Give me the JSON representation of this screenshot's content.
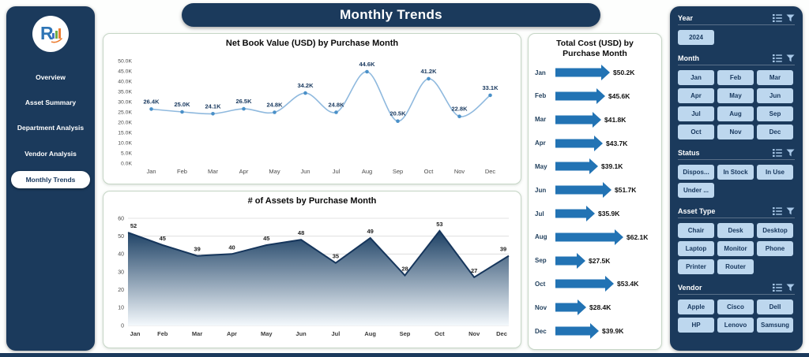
{
  "header": {
    "title": "Monthly Trends"
  },
  "sidebar": {
    "items": [
      {
        "label": "Overview",
        "active": false
      },
      {
        "label": "Asset Summary",
        "active": false
      },
      {
        "label": "Department Analysis",
        "active": false
      },
      {
        "label": "Vendor Analysis",
        "active": false
      },
      {
        "label": "Monthly Trends",
        "active": true
      }
    ]
  },
  "filters": {
    "year": {
      "title": "Year",
      "options": [
        "2024"
      ]
    },
    "month": {
      "title": "Month",
      "options": [
        "Jan",
        "Feb",
        "Mar",
        "Apr",
        "May",
        "Jun",
        "Jul",
        "Aug",
        "Sep",
        "Oct",
        "Nov",
        "Dec"
      ]
    },
    "status": {
      "title": "Status",
      "options": [
        "Dispos...",
        "In Stock",
        "In Use",
        "Under ..."
      ]
    },
    "asset_type": {
      "title": "Asset Type",
      "options": [
        "Chair",
        "Desk",
        "Desktop",
        "Laptop",
        "Monitor",
        "Phone",
        "Printer",
        "Router"
      ]
    },
    "vendor": {
      "title": "Vendor",
      "options": [
        "Apple",
        "Cisco",
        "Dell",
        "HP",
        "Lenovo",
        "Samsung"
      ]
    }
  },
  "icons": {
    "section_header": [
      "select-all-icon",
      "clear-filter-icon"
    ],
    "logo": "company-logo-icon"
  },
  "chart_data": [
    {
      "type": "line",
      "title": "Net Book Value (USD) by Purchase Month",
      "categories": [
        "Jan",
        "Feb",
        "Mar",
        "Apr",
        "May",
        "Jun",
        "Jul",
        "Aug",
        "Sep",
        "Oct",
        "Nov",
        "Dec"
      ],
      "values": [
        26.4,
        25.0,
        24.1,
        26.5,
        24.8,
        34.2,
        24.8,
        44.6,
        20.5,
        41.2,
        22.8,
        33.1
      ],
      "labels": [
        "26.4K",
        "25.0K",
        "24.1K",
        "26.5K",
        "24.8K",
        "34.2K",
        "24.8K",
        "44.6K",
        "20.5K",
        "41.2K",
        "22.8K",
        "33.1K"
      ],
      "ylim": [
        0,
        50
      ],
      "ytick_step": 5,
      "ytick_labels": [
        "0.0K",
        "5.0K",
        "10.0K",
        "15.0K",
        "20.0K",
        "25.0K",
        "30.0K",
        "35.0K",
        "40.0K",
        "45.0K",
        "50.0K"
      ],
      "grid": false,
      "legend": false
    },
    {
      "type": "area",
      "title": "# of Assets by Purchase Month",
      "categories": [
        "Jan",
        "Feb",
        "Mar",
        "Apr",
        "May",
        "Jun",
        "Jul",
        "Aug",
        "Sep",
        "Oct",
        "Nov",
        "Dec"
      ],
      "values": [
        52,
        45,
        39,
        40,
        45,
        48,
        35,
        49,
        28,
        53,
        27,
        39
      ],
      "ylim": [
        0,
        60
      ],
      "ytick_step": 10,
      "ytick_labels": [
        "0",
        "10",
        "20",
        "30",
        "40",
        "50",
        "60"
      ],
      "grid": true,
      "legend": false
    },
    {
      "type": "bar",
      "orientation": "horizontal",
      "title": "Total Cost (USD) by Purchase Month",
      "categories": [
        "Jan",
        "Feb",
        "Mar",
        "Apr",
        "May",
        "Jun",
        "Jul",
        "Aug",
        "Sep",
        "Oct",
        "Nov",
        "Dec"
      ],
      "values": [
        50.2,
        45.6,
        41.8,
        43.7,
        39.1,
        51.7,
        35.9,
        62.1,
        27.5,
        53.4,
        28.4,
        39.9
      ],
      "labels": [
        "$50.2K",
        "$45.6K",
        "$41.8K",
        "$43.7K",
        "$39.1K",
        "$51.7K",
        "$35.9K",
        "$62.1K",
        "$27.5K",
        "$53.4K",
        "$28.4K",
        "$39.9K"
      ],
      "xlim": [
        0,
        65
      ],
      "legend": false
    }
  ],
  "colors": {
    "navy": "#1B3A5C",
    "button_blue": "#BDD7EE",
    "line": "#8FB9DE",
    "marker": "#4A90C8",
    "arrow": "#2273B4",
    "area_top": "#1C4064",
    "label_navy": "#17375D",
    "panel_border": "#C6D6C6"
  }
}
